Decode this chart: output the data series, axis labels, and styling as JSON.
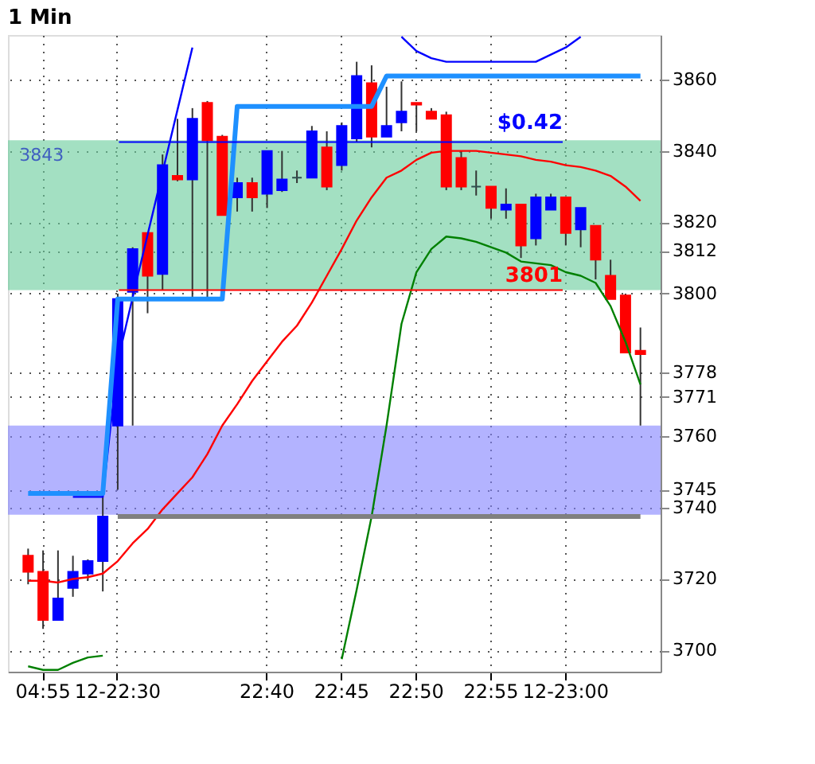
{
  "chart_data": {
    "type": "candlestick",
    "title": "1 Min",
    "categories": [
      null,
      "04:55",
      null,
      null,
      null,
      null,
      "12-22:30",
      null,
      null,
      null,
      null,
      null,
      null,
      null,
      null,
      null,
      "22:40",
      null,
      null,
      null,
      null,
      "22:45",
      null,
      null,
      null,
      null,
      "22:50",
      null,
      null,
      null,
      null,
      "22:55",
      null,
      null,
      null,
      null,
      "12-23:00",
      null,
      null,
      null,
      null,
      null
    ],
    "ohlc": [
      [
        3726.5,
        3728.5,
        3718.5,
        3722
      ],
      [
        3722,
        3728,
        3706,
        3708.5
      ],
      [
        3708.5,
        3728,
        3708.5,
        3714.5
      ],
      [
        3717.5,
        3726.5,
        3715,
        3722
      ],
      [
        3721.5,
        3725.5,
        3719.5,
        3725
      ],
      [
        3725,
        3743,
        3716.5,
        3737.5
      ],
      [
        3763,
        3800,
        3745,
        3798.5
      ],
      [
        3800.5,
        3813,
        3763,
        3812.5
      ],
      [
        3817,
        3817,
        3794.5,
        3805
      ],
      [
        3805.5,
        3839,
        3801,
        3836
      ],
      [
        3833,
        3849,
        3831.5,
        3832
      ],
      [
        3832,
        3852,
        3798.5,
        3849
      ],
      [
        3853.5,
        3854,
        3798.5,
        3843
      ],
      [
        3844,
        3844.5,
        3822,
        3822
      ],
      [
        3827,
        3832.5,
        3823,
        3831
      ],
      [
        3831,
        3832.5,
        3823,
        3827
      ],
      [
        3828,
        3840,
        3824,
        3840
      ],
      [
        3829,
        3840,
        3828.5,
        3832
      ],
      [
        3832.5,
        3834.5,
        3831,
        3832.5
      ],
      [
        3832.5,
        3847,
        3832.5,
        3845.5
      ],
      [
        3841,
        3845.5,
        3829,
        3830
      ],
      [
        3836,
        3848,
        3834.5,
        3847
      ],
      [
        3843.5,
        3865,
        3842.5,
        3861
      ],
      [
        3859,
        3864,
        3841,
        3844
      ],
      [
        3844,
        3858,
        3844,
        3847
      ],
      [
        3848,
        3859.5,
        3845.5,
        3851
      ],
      [
        3853.5,
        3853.5,
        3845.5,
        3853
      ],
      [
        3851,
        3852,
        3849,
        3849
      ],
      [
        3850,
        3851,
        3829,
        3830
      ],
      [
        3838,
        3840,
        3829,
        3830
      ],
      [
        3830,
        3834.5,
        3827.5,
        3830
      ],
      [
        3830,
        3830,
        3821,
        3824
      ],
      [
        3823.5,
        3829.5,
        3821,
        3825
      ],
      [
        3825,
        3825,
        3810,
        3813.5
      ],
      [
        3815.5,
        3828,
        3813.5,
        3827
      ],
      [
        3823.5,
        3828,
        3823.5,
        3827
      ],
      [
        3827,
        3827,
        3813.5,
        3817
      ],
      [
        3818,
        3824,
        3813,
        3824
      ],
      [
        3819,
        3819,
        3804,
        3809.5
      ],
      [
        3805,
        3809.5,
        3798.5,
        3798.5
      ],
      [
        3799.5,
        3800,
        3783.5,
        3783.5
      ],
      [
        3784,
        3790.5,
        3763,
        3783
      ]
    ],
    "colors": [
      "#ff0000",
      "#ff0000",
      "#0000ff",
      "#0000ff",
      "#0000ff",
      "#0000ff",
      "#0000ff",
      "#0000ff",
      "#ff0000",
      "#0000ff",
      "#ff0000",
      "#0000ff",
      "#ff0000",
      "#ff0000",
      "#0000ff",
      "#ff0000",
      "#0000ff",
      "#0000ff",
      "#2f4f4f",
      "#0000ff",
      "#ff0000",
      "#0000ff",
      "#0000ff",
      "#ff0000",
      "#0000ff",
      "#0000ff",
      "#ff0000",
      "#ff0000",
      "#ff0000",
      "#ff0000",
      "#2f4f4f",
      "#ff0000",
      "#0000ff",
      "#ff0000",
      "#0000ff",
      "#0000ff",
      "#ff0000",
      "#0000ff",
      "#ff0000",
      "#ff0000",
      "#ff0000",
      "#ff0000"
    ],
    "series": [
      {
        "type": "line",
        "color": "#ff0000",
        "values": [
          3719.5,
          3719.5,
          3719,
          3720,
          3720.5,
          3721.5,
          3725,
          3730,
          3734,
          3739.5,
          3744,
          3748.5,
          3755,
          3763,
          3769,
          3775.5,
          3781,
          3786.5,
          3791,
          3797.5,
          3805,
          3812.5,
          3820.5,
          3827,
          3832.5,
          3834.5,
          3837.5,
          3839.5,
          3840,
          3840,
          3840,
          3839.5,
          3839,
          3838.5,
          3837.5,
          3837,
          3836,
          3835.5,
          3834.5,
          3833,
          3830,
          3826
        ]
      },
      {
        "type": "line",
        "color": "#008000",
        "values": [
          3695.5,
          3694.5,
          3694.5,
          3696.5,
          3698,
          3698.5,
          null,
          null,
          null,
          null,
          null,
          null,
          null,
          null,
          null,
          null,
          null,
          null,
          null,
          null,
          null,
          3697.5,
          3717,
          3737.5,
          3763,
          3791.5,
          3806,
          3812.5,
          3816,
          3815.5,
          3814.5,
          3813,
          3811.5,
          3809,
          3808.5,
          3808,
          3806,
          3805,
          3803,
          3796.5,
          3786.5,
          3774.5
        ]
      },
      {
        "type": "line",
        "color": "#0000ff",
        "values": [
          null,
          null,
          null,
          3743,
          3743,
          3743,
          3781,
          3799,
          3816.5,
          3834,
          3851.5,
          3869,
          null,
          null,
          null,
          null,
          null,
          null,
          null,
          null,
          null,
          null,
          null,
          null,
          null,
          3872,
          3868,
          3866,
          3865,
          3865,
          3865,
          3865,
          3865,
          3865,
          3865,
          3867,
          3869,
          3872,
          null,
          null,
          null,
          null
        ]
      },
      {
        "type": "step",
        "color": "#1e90ff",
        "values": [
          3744,
          3744,
          3744,
          3744,
          3744,
          3744,
          3798.5,
          3798.5,
          3798.5,
          3798.5,
          3798.5,
          3798.5,
          3798.5,
          3798.5,
          3852.5,
          3852.5,
          3852.5,
          3852.5,
          3852.5,
          3852.5,
          3852.5,
          3852.5,
          3852.5,
          3852.5,
          3861,
          3861,
          3861,
          3861,
          3861,
          3861,
          3861,
          3861,
          3861,
          3861,
          3861,
          3861,
          3861,
          3861,
          3861,
          3861,
          3861,
          3861
        ]
      },
      {
        "type": "step",
        "color": "#808080",
        "values": [
          null,
          null,
          null,
          null,
          null,
          null,
          3737.5,
          3737.5,
          3737.5,
          3737.5,
          3737.5,
          3737.5,
          3737.5,
          3737.5,
          3737.5,
          3737.5,
          3737.5,
          3737.5,
          3737.5,
          3737.5,
          3737.5,
          3737.5,
          3737.5,
          3737.5,
          3737.5,
          3737.5,
          3737.5,
          3737.5,
          3737.5,
          3737.5,
          3737.5,
          3737.5,
          3737.5,
          3737.5,
          3737.5,
          3737.5,
          3737.5,
          3737.5,
          3737.5,
          3737.5,
          3737.5,
          3737.5
        ]
      }
    ],
    "ylim": [
      3694,
      3872.5
    ],
    "yticks": [
      3700,
      3720,
      3740,
      3745,
      3760,
      3771,
      3778,
      3800,
      3812,
      3820,
      3840,
      3860
    ],
    "bands": [
      {
        "axis": "y",
        "from": 3801,
        "to": 3843,
        "label": "3843",
        "color": "#66cc99"
      },
      {
        "axis": "y",
        "from": 3738,
        "to": 3763,
        "color": "#8080ff"
      }
    ],
    "ref_lines": [
      {
        "axis": "y",
        "value": 3842.5,
        "color": "#0000ff"
      },
      {
        "axis": "y",
        "value": 3801,
        "label": "3801",
        "color": "#ff0000"
      }
    ],
    "annotations": [
      "$0.42"
    ],
    "grid": true,
    "legend": false
  }
}
